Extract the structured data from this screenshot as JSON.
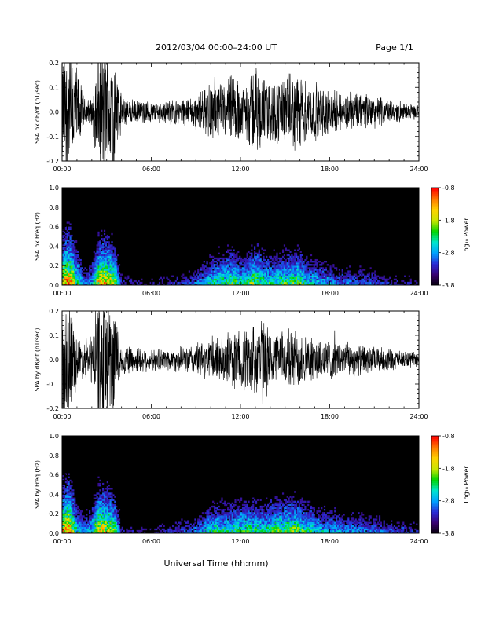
{
  "header": {
    "date_range": "2012/03/04  00:00–24:00 UT",
    "page": "Page 1/1"
  },
  "footer": {
    "xlabel": "Universal Time (hh:mm)"
  },
  "colors": {
    "trace": "#000000",
    "spectrogram_background": "#000000",
    "colormap": [
      "#000000",
      "#3a0070",
      "#2a2bd6",
      "#00a0ff",
      "#00e6d0",
      "#00d400",
      "#c8e600",
      "#ffd200",
      "#ff7a00",
      "#ff0000"
    ]
  },
  "chart_data": [
    {
      "type": "line",
      "name": "SPA bx dB/dt",
      "ylabel": "SPA bx dB/dt (nT/sec)",
      "xlim": [
        "00:00",
        "24:00"
      ],
      "ylim": [
        -0.2,
        0.2
      ],
      "x_ticks": [
        "00:00",
        "06:00",
        "12:00",
        "18:00",
        "24:00"
      ],
      "y_ticks": [
        "-0.2",
        "-0.1",
        "0.0",
        "0.1",
        "0.2"
      ],
      "envelope": {
        "x_hours": [
          0,
          0.5,
          1,
          1.5,
          2,
          2.5,
          3,
          3.5,
          4,
          5,
          6,
          7,
          8,
          9,
          10,
          11,
          11.5,
          12,
          12.5,
          13,
          13.5,
          14,
          15,
          16,
          16.5,
          17,
          18,
          19,
          20,
          21,
          22,
          23,
          24
        ],
        "amplitude": [
          0.26,
          0.3,
          0.2,
          0.06,
          0.06,
          0.3,
          0.3,
          0.26,
          0.07,
          0.05,
          0.05,
          0.05,
          0.06,
          0.08,
          0.12,
          0.13,
          0.18,
          0.12,
          0.16,
          0.22,
          0.16,
          0.14,
          0.16,
          0.18,
          0.13,
          0.13,
          0.1,
          0.08,
          0.09,
          0.07,
          0.05,
          0.04,
          0.03
        ]
      }
    },
    {
      "type": "heatmap",
      "name": "SPA bx spectrogram",
      "ylabel": "SPA bx Freq (Hz)",
      "xlim": [
        "00:00",
        "24:00"
      ],
      "ylim": [
        0.0,
        1.0
      ],
      "x_ticks": [
        "00:00",
        "06:00",
        "12:00",
        "18:00",
        "24:00"
      ],
      "y_ticks": [
        "0.0",
        "0.2",
        "0.4",
        "0.6",
        "0.8",
        "1.0"
      ],
      "colorbar": {
        "label": "Log₁₀ Power",
        "range": [
          -3.8,
          -0.8
        ],
        "ticks": [
          "-0.8",
          "-1.8",
          "-2.8",
          "-3.8"
        ]
      },
      "activity": {
        "x_hours": [
          0,
          0.5,
          1,
          1.5,
          2,
          2.5,
          3,
          3.5,
          4,
          5,
          6,
          7,
          8,
          9,
          10,
          11,
          11.5,
          12,
          12.5,
          13,
          13.5,
          14,
          15,
          16,
          16.5,
          17,
          18,
          19,
          20,
          21,
          22,
          23,
          24
        ],
        "level": [
          0.9,
          1.0,
          0.7,
          0.4,
          0.5,
          0.9,
          0.9,
          0.8,
          0.3,
          0.25,
          0.25,
          0.3,
          0.3,
          0.4,
          0.6,
          0.65,
          0.7,
          0.6,
          0.65,
          0.75,
          0.65,
          0.6,
          0.65,
          0.7,
          0.55,
          0.55,
          0.45,
          0.4,
          0.4,
          0.35,
          0.3,
          0.3,
          0.25
        ]
      }
    },
    {
      "type": "line",
      "name": "SPA by dB/dt",
      "ylabel": "SPA by dB/dt (nT/sec)",
      "xlim": [
        "00:00",
        "24:00"
      ],
      "ylim": [
        -0.2,
        0.2
      ],
      "x_ticks": [
        "00:00",
        "06:00",
        "12:00",
        "18:00",
        "24:00"
      ],
      "y_ticks": [
        "-0.2",
        "-0.1",
        "0.0",
        "0.1",
        "0.2"
      ],
      "envelope": {
        "x_hours": [
          0,
          0.5,
          1,
          1.5,
          2,
          2.5,
          3,
          3.5,
          4,
          5,
          6,
          7,
          8,
          9,
          10,
          11,
          11.5,
          12,
          12.5,
          13,
          13.5,
          14,
          15,
          16,
          16.5,
          17,
          18,
          19,
          20,
          21,
          22,
          23,
          24
        ],
        "amplitude": [
          0.26,
          0.3,
          0.1,
          0.08,
          0.12,
          0.3,
          0.3,
          0.25,
          0.07,
          0.06,
          0.05,
          0.05,
          0.06,
          0.07,
          0.1,
          0.11,
          0.13,
          0.14,
          0.15,
          0.17,
          0.2,
          0.12,
          0.13,
          0.14,
          0.1,
          0.1,
          0.09,
          0.08,
          0.07,
          0.06,
          0.05,
          0.04,
          0.03
        ]
      }
    },
    {
      "type": "heatmap",
      "name": "SPA by spectrogram",
      "ylabel": "SPA by Freq (Hz)",
      "xlim": [
        "00:00",
        "24:00"
      ],
      "ylim": [
        0.0,
        1.0
      ],
      "x_ticks": [
        "00:00",
        "06:00",
        "12:00",
        "18:00",
        "24:00"
      ],
      "y_ticks": [
        "0.0",
        "0.2",
        "0.4",
        "0.6",
        "0.8",
        "1.0"
      ],
      "colorbar": {
        "label": "Log₁₀ Power",
        "range": [
          -3.8,
          -0.8
        ],
        "ticks": [
          "-0.8",
          "-1.8",
          "-2.8",
          "-3.8"
        ]
      },
      "activity": {
        "x_hours": [
          0,
          0.5,
          1,
          1.5,
          2,
          2.5,
          3,
          3.5,
          4,
          5,
          6,
          7,
          8,
          9,
          10,
          11,
          11.5,
          12,
          12.5,
          13,
          13.5,
          14,
          15,
          16,
          16.5,
          17,
          18,
          19,
          20,
          21,
          22,
          23,
          24
        ],
        "level": [
          0.9,
          1.0,
          0.6,
          0.45,
          0.55,
          0.9,
          0.85,
          0.75,
          0.3,
          0.25,
          0.25,
          0.3,
          0.35,
          0.4,
          0.6,
          0.6,
          0.6,
          0.65,
          0.65,
          0.65,
          0.6,
          0.65,
          0.7,
          0.7,
          0.6,
          0.55,
          0.5,
          0.45,
          0.45,
          0.4,
          0.35,
          0.35,
          0.3
        ]
      }
    }
  ]
}
